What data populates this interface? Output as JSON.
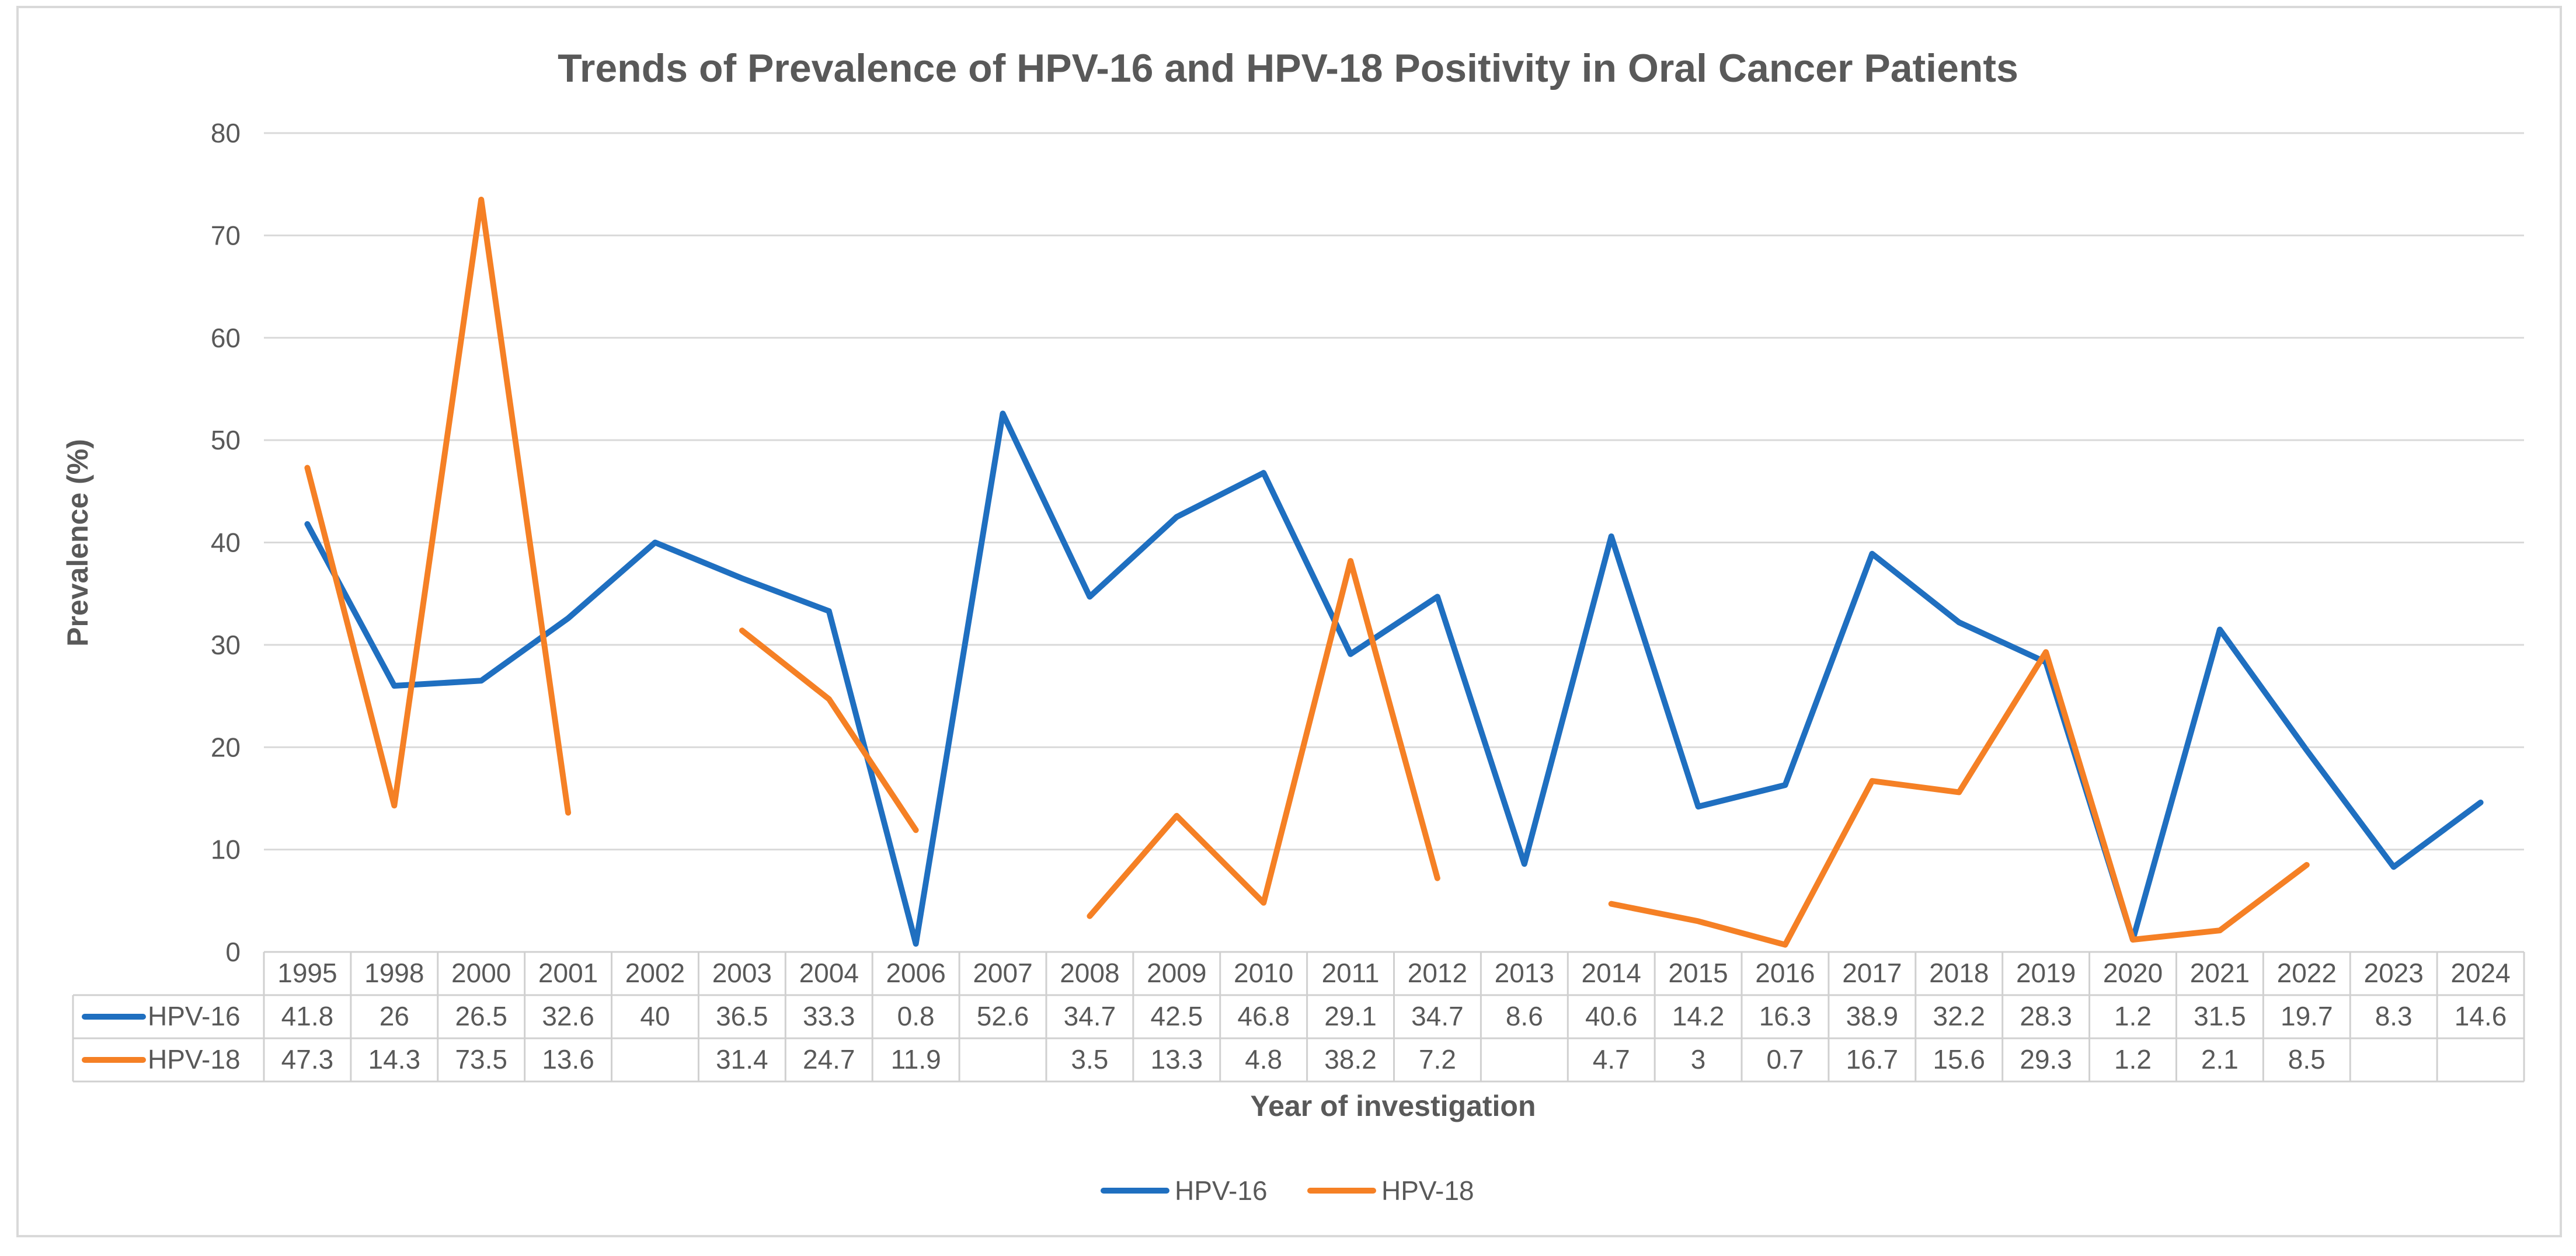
{
  "chart_data": {
    "type": "line",
    "title": "Trends of Prevalence of HPV-16 and HPV-18 Positivity in Oral Cancer Patients",
    "xlabel": "Year of investigation",
    "ylabel": "Prevalence (%)",
    "ylim": [
      0,
      80
    ],
    "yticks": [
      "0",
      "10",
      "20",
      "30",
      "40",
      "50",
      "60",
      "70",
      "80"
    ],
    "grid": "horizontal",
    "legend_position": "bottom",
    "data_table": true,
    "categories": [
      "1995",
      "1998",
      "2000",
      "2001",
      "2002",
      "2003",
      "2004",
      "2006",
      "2007",
      "2008",
      "2009",
      "2010",
      "2011",
      "2012",
      "2013",
      "2014",
      "2015",
      "2016",
      "2017",
      "2018",
      "2019",
      "2020",
      "2021",
      "2022",
      "2023",
      "2024"
    ],
    "series": [
      {
        "name": "HPV-16",
        "color": "#1f6fc0",
        "values": [
          41.8,
          26,
          26.5,
          32.6,
          40,
          36.5,
          33.3,
          0.8,
          52.6,
          34.7,
          42.5,
          46.8,
          29.1,
          34.7,
          8.6,
          40.6,
          14.2,
          16.3,
          38.9,
          32.2,
          28.3,
          1.2,
          31.5,
          19.7,
          8.3,
          14.6
        ],
        "labels": [
          "41.8",
          "26",
          "26.5",
          "32.6",
          "40",
          "36.5",
          "33.3",
          "0.8",
          "52.6",
          "34.7",
          "42.5",
          "46.8",
          "29.1",
          "34.7",
          "8.6",
          "40.6",
          "14.2",
          "16.3",
          "38.9",
          "32.2",
          "28.3",
          "1.2",
          "31.5",
          "19.7",
          "8.3",
          "14.6"
        ]
      },
      {
        "name": "HPV-18",
        "color": "#f58025",
        "values": [
          47.3,
          14.3,
          73.5,
          13.6,
          null,
          31.4,
          24.7,
          11.9,
          null,
          3.5,
          13.3,
          4.8,
          38.2,
          7.2,
          null,
          4.7,
          3,
          0.7,
          16.7,
          15.6,
          29.3,
          1.2,
          2.1,
          8.5,
          null,
          null
        ],
        "labels": [
          "47.3",
          "14.3",
          "73.5",
          "13.6",
          "",
          "31.4",
          "24.7",
          "11.9",
          "",
          "3.5",
          "13.3",
          "4.8",
          "38.2",
          "7.2",
          "",
          "4.7",
          "3",
          "0.7",
          "16.7",
          "15.6",
          "29.3",
          "1.2",
          "2.1",
          "8.5",
          "",
          ""
        ]
      }
    ]
  }
}
